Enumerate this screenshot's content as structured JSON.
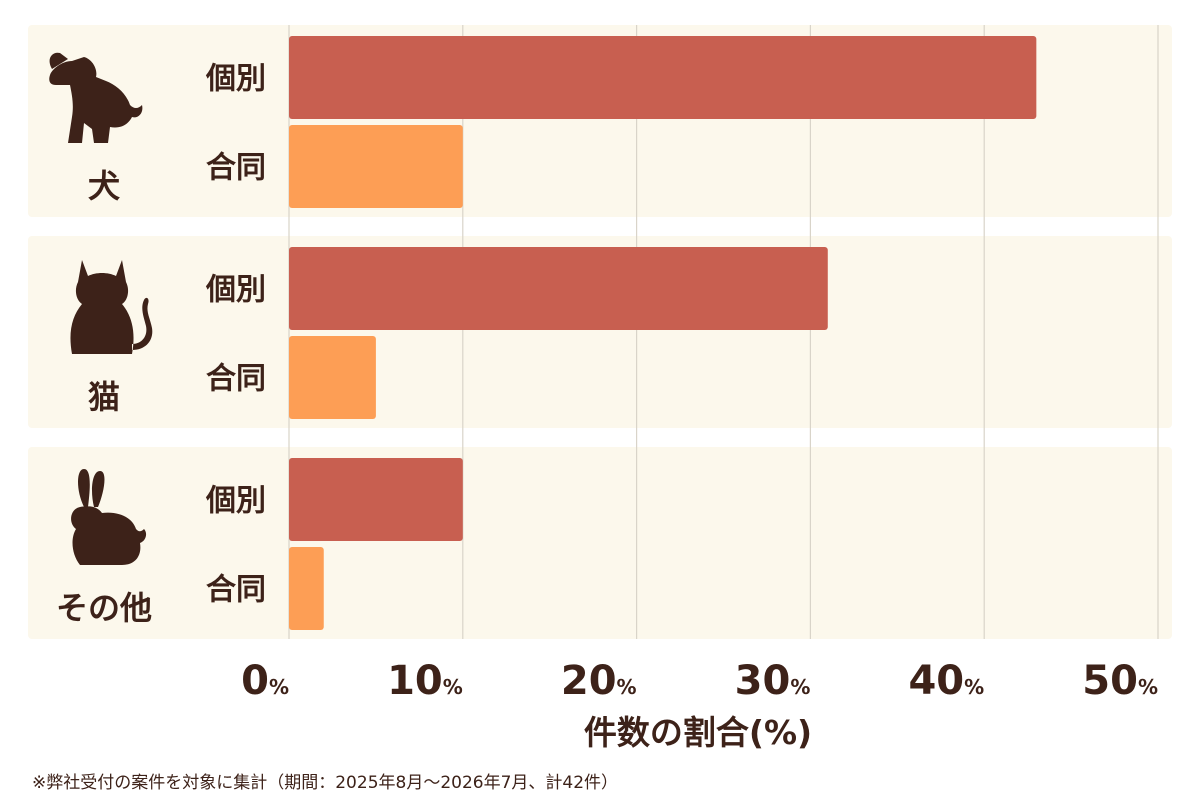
{
  "chart_data": {
    "type": "bar",
    "orientation": "horizontal",
    "categories": [
      "犬",
      "猫",
      "その他"
    ],
    "category_icons": [
      "dog-icon",
      "cat-icon",
      "rabbit-icon"
    ],
    "series": [
      {
        "name": "個別",
        "values": [
          43,
          31,
          10
        ]
      },
      {
        "name": "合同",
        "values": [
          10,
          5,
          2
        ]
      }
    ],
    "xlim": [
      0,
      50
    ],
    "ticks": [
      {
        "num": "0",
        "unit": "%",
        "value": 0
      },
      {
        "num": "10",
        "unit": "%",
        "value": 10
      },
      {
        "num": "20",
        "unit": "%",
        "value": 20
      },
      {
        "num": "30",
        "unit": "%",
        "value": 30
      },
      {
        "num": "40",
        "unit": "%",
        "value": 40
      },
      {
        "num": "50",
        "unit": "%",
        "value": 50
      }
    ],
    "xlabel": "件数の割合(%)",
    "grid": true,
    "colors": {
      "series": [
        "#c85f50",
        "#fd9e55"
      ],
      "panel": "#fcf8ec",
      "grid": "#d9d4c9",
      "text": "#3d2219"
    }
  },
  "footnote": "※弊社受付の案件を対象に集計（期間：2025年8月～2026年7月、計42件）"
}
